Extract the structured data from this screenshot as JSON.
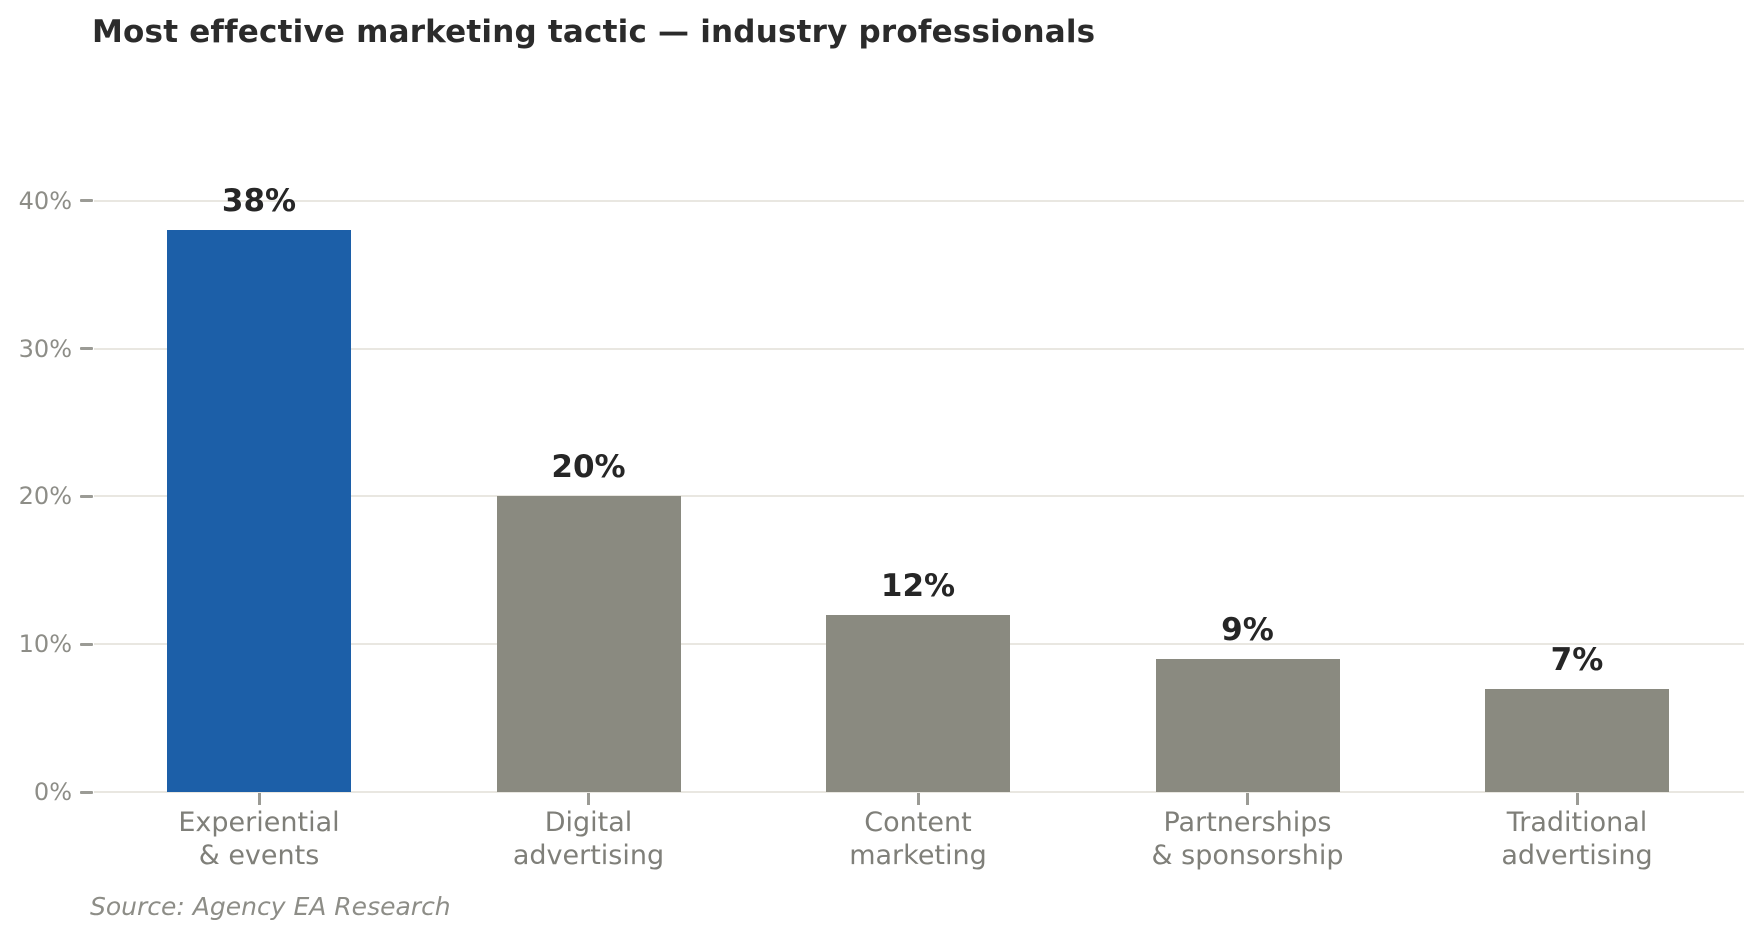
{
  "chart_data": {
    "type": "bar",
    "title": "Most effective marketing tactic — industry professionals",
    "source_note": "Source: Agency EA Research",
    "categories": [
      "Experiential\n& events",
      "Digital\nadvertising",
      "Content\nmarketing",
      "Partnerships\n& sponsorship",
      "Traditional\nadvertising"
    ],
    "values": [
      38,
      20,
      12,
      9,
      7
    ],
    "value_labels": [
      "38%",
      "20%",
      "12%",
      "9%",
      "7%"
    ],
    "yticks": [
      0,
      10,
      20,
      30,
      40
    ],
    "ytick_labels": [
      "0%",
      "10%",
      "20%",
      "30%",
      "40%"
    ],
    "ylim": [
      0,
      40
    ],
    "xlabel": "",
    "ylabel": "",
    "grid": true,
    "legend": false,
    "bar_colors": [
      "#1c5fa8",
      "#8a8a80",
      "#8a8a80",
      "#8a8a80",
      "#8a8a80"
    ],
    "colors": {
      "highlight_bar": "#1c5fa8",
      "other_bars": "#8a8a80",
      "title": "#2b2b2b",
      "value_label": "#262626",
      "ytick_label": "#8d8d87",
      "category_label": "#7f7f79",
      "source": "#8d8d87",
      "gridline": "#e9e7e1",
      "axis_tick": "#9b9b95"
    }
  }
}
